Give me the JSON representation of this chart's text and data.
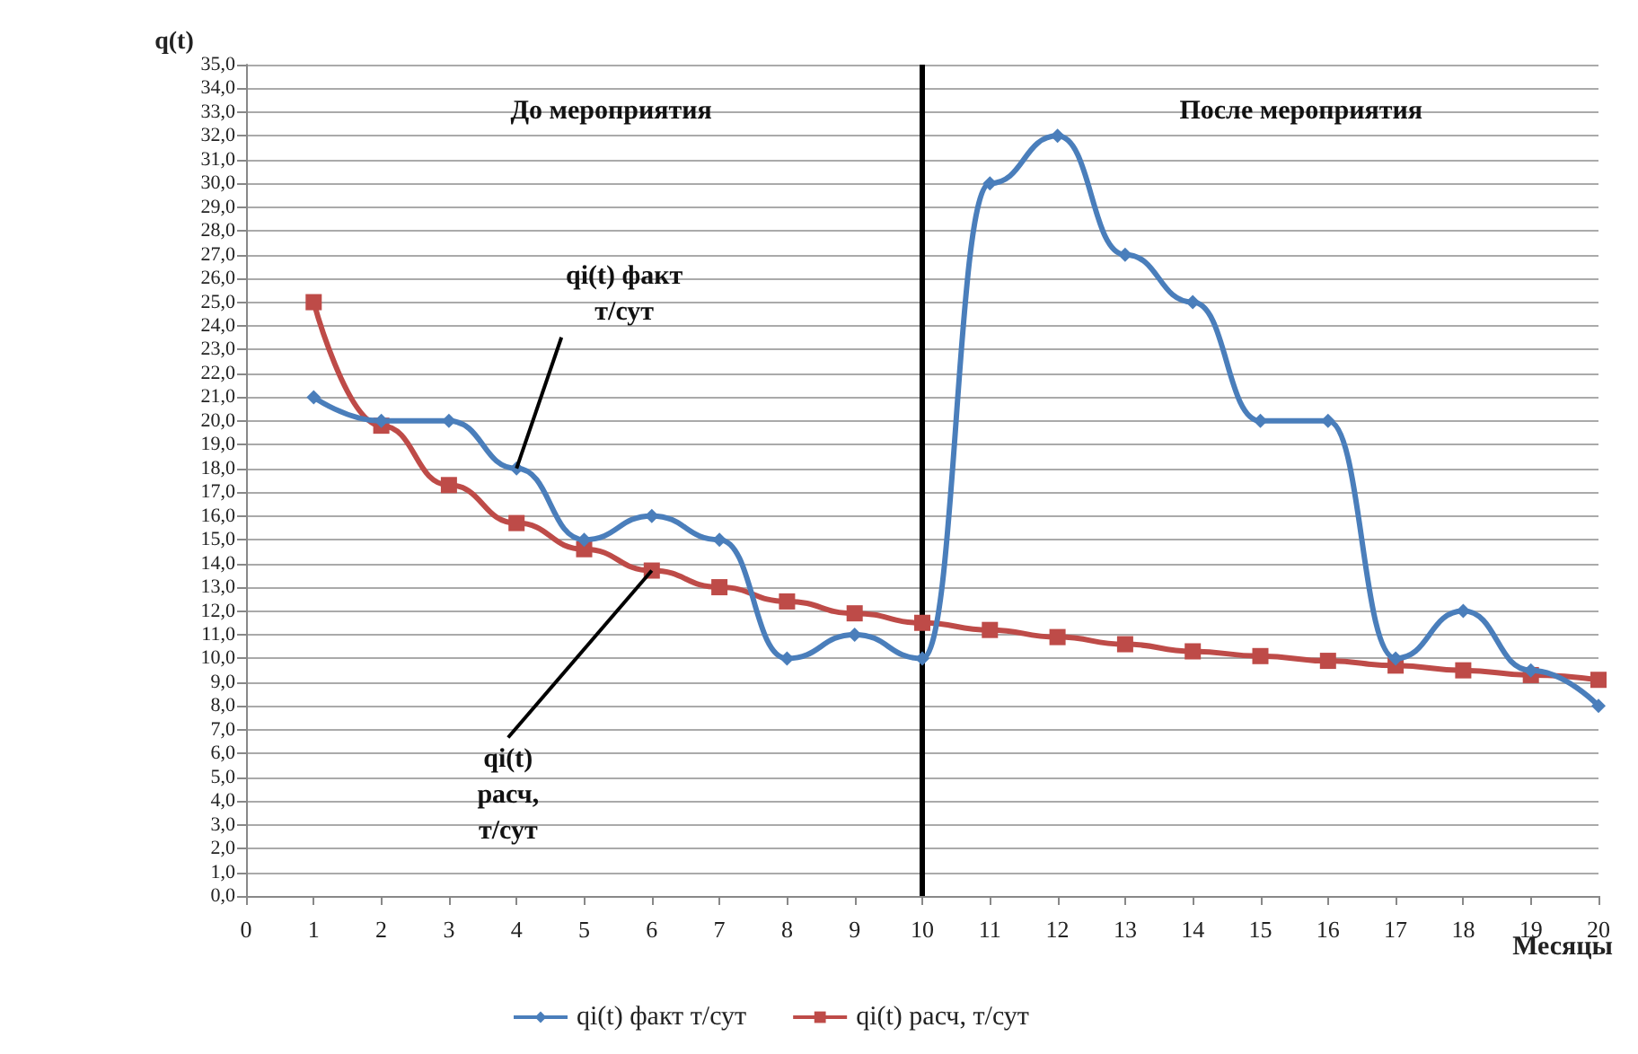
{
  "chart_data": {
    "type": "line",
    "xlabel": "Месяцы",
    "ylabel": "q(t)",
    "x": [
      1,
      2,
      3,
      4,
      5,
      6,
      7,
      8,
      9,
      10,
      11,
      12,
      13,
      14,
      15,
      16,
      17,
      18,
      19,
      20
    ],
    "series": [
      {
        "name": "qi(t) факт т/сут",
        "color": "#4a7ebb",
        "marker": "diamond",
        "values": [
          21,
          20,
          20,
          18,
          15,
          16,
          15,
          10,
          11,
          10,
          30,
          32,
          27,
          25,
          20,
          20,
          10,
          12,
          9.5,
          8
        ]
      },
      {
        "name": "qi(t) расч, т/сут",
        "color": "#be4b48",
        "marker": "square",
        "values": [
          25,
          19.8,
          17.3,
          15.7,
          14.6,
          13.7,
          13.0,
          12.4,
          11.9,
          11.5,
          11.2,
          10.9,
          10.6,
          10.3,
          10.1,
          9.9,
          9.7,
          9.5,
          9.3,
          9.1
        ]
      }
    ],
    "xlim": [
      0,
      20
    ],
    "xticks": [
      0,
      1,
      2,
      3,
      4,
      5,
      6,
      7,
      8,
      9,
      10,
      11,
      12,
      13,
      14,
      15,
      16,
      17,
      18,
      19,
      20
    ],
    "ylim": [
      0,
      35
    ],
    "yticks": [
      {
        "value": 0,
        "label": "0,0"
      },
      {
        "value": 1,
        "label": "1,0"
      },
      {
        "value": 2,
        "label": "2,0"
      },
      {
        "value": 3,
        "label": "3,0"
      },
      {
        "value": 4,
        "label": "4,0"
      },
      {
        "value": 5,
        "label": "5,0"
      },
      {
        "value": 6,
        "label": "6,0"
      },
      {
        "value": 7,
        "label": "7,0"
      },
      {
        "value": 8,
        "label": "8,0"
      },
      {
        "value": 9,
        "label": "9,0"
      },
      {
        "value": 10,
        "label": "10,0"
      },
      {
        "value": 11,
        "label": "11,0"
      },
      {
        "value": 12,
        "label": "12,0"
      },
      {
        "value": 13,
        "label": "13,0"
      },
      {
        "value": 14,
        "label": "14,0"
      },
      {
        "value": 15,
        "label": "15,0"
      },
      {
        "value": 16,
        "label": "16,0"
      },
      {
        "value": 17,
        "label": "17,0"
      },
      {
        "value": 18,
        "label": "18,0"
      },
      {
        "value": 19,
        "label": "19,0"
      },
      {
        "value": 20,
        "label": "20,0"
      },
      {
        "value": 21,
        "label": "21,0"
      },
      {
        "value": 22,
        "label": "22,0"
      },
      {
        "value": 23,
        "label": "23,0"
      },
      {
        "value": 24,
        "label": "24,0"
      },
      {
        "value": 25,
        "label": "25,0"
      },
      {
        "value": 26,
        "label": "26,0"
      },
      {
        "value": 27,
        "label": "27,0"
      },
      {
        "value": 28,
        "label": "28,0"
      },
      {
        "value": 29,
        "label": "29,0"
      },
      {
        "value": 30,
        "label": "30,0"
      },
      {
        "value": 31,
        "label": "31,0"
      },
      {
        "value": 32,
        "label": "32,0"
      },
      {
        "value": 33,
        "label": "33,0"
      },
      {
        "value": 34,
        "label": "34,0"
      },
      {
        "value": 35,
        "label": "35,0"
      }
    ],
    "grid": "y",
    "legend": "bottom",
    "line_style": "solid",
    "ref_lines": [
      {
        "axis": "x",
        "value": 10,
        "color": "#000000"
      }
    ],
    "annotations": [
      "До мероприятия",
      "После мероприятия",
      {
        "text": "qi(t) факт т/сут",
        "x": 4,
        "y": 18
      },
      {
        "text": "qi(t) расч, т/сут",
        "x": 6,
        "y": 13.7
      }
    ]
  }
}
